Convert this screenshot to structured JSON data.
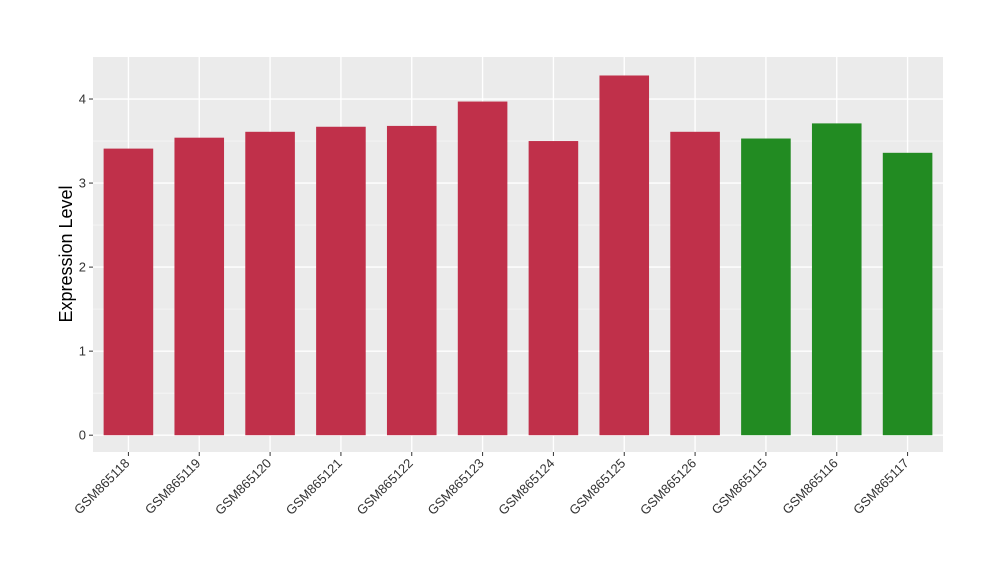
{
  "chart_data": {
    "type": "bar",
    "title": "",
    "xlabel": "",
    "ylabel": "Expression Level",
    "categories": [
      "GSM865118",
      "GSM865119",
      "GSM865120",
      "GSM865121",
      "GSM865122",
      "GSM865123",
      "GSM865124",
      "GSM865125",
      "GSM865126",
      "GSM865115",
      "GSM865116",
      "GSM865117"
    ],
    "values": [
      3.41,
      3.54,
      3.61,
      3.67,
      3.68,
      3.97,
      3.5,
      4.28,
      3.61,
      3.53,
      3.71,
      3.36
    ],
    "bar_colors": [
      "#c0304a",
      "#c0304a",
      "#c0304a",
      "#c0304a",
      "#c0304a",
      "#c0304a",
      "#c0304a",
      "#c0304a",
      "#c0304a",
      "#228b22",
      "#228b22",
      "#228b22"
    ],
    "ylim": [
      -0.2,
      4.5
    ],
    "yticks": [
      0,
      1,
      2,
      3,
      4
    ],
    "grid": true,
    "panel_background": "#ebebeb",
    "legend": "none"
  }
}
